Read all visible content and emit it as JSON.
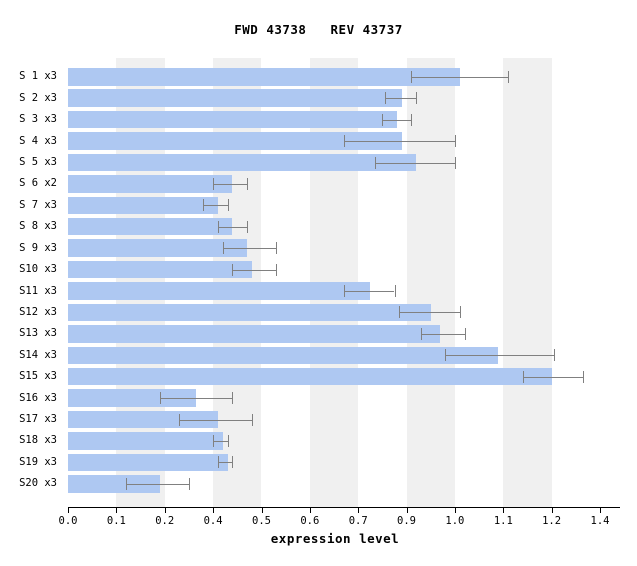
{
  "title": "FWD 43738   REV 43737",
  "chart_data": {
    "type": "bar",
    "orientation": "horizontal",
    "title": "FWD 43738   REV 43737",
    "xlabel": "expression level",
    "ylabel": "",
    "grid": "off",
    "legend": "none",
    "axis_note": "12 evenly spaced ticks; labels as printed on the axis (0.3, 0.8 and 1.3 are skipped)",
    "x_ticks": [
      {
        "value": 0.0,
        "label": "0.0"
      },
      {
        "value": 0.1,
        "label": "0.1"
      },
      {
        "value": 0.2,
        "label": "0.2"
      },
      {
        "value": 0.4,
        "label": "0.4"
      },
      {
        "value": 0.5,
        "label": "0.5"
      },
      {
        "value": 0.6,
        "label": "0.6"
      },
      {
        "value": 0.7,
        "label": "0.7"
      },
      {
        "value": 0.9,
        "label": "0.9"
      },
      {
        "value": 1.0,
        "label": "1.0"
      },
      {
        "value": 1.1,
        "label": "1.1"
      },
      {
        "value": 1.2,
        "label": "1.2"
      },
      {
        "value": 1.4,
        "label": "1.4"
      }
    ],
    "shaded_bands": [
      [
        0.1,
        0.2
      ],
      [
        0.4,
        0.5
      ],
      [
        0.6,
        0.7
      ],
      [
        0.9,
        1.0
      ],
      [
        1.1,
        1.2
      ]
    ],
    "bars": [
      {
        "label": "S 1 x3",
        "value": 1.01,
        "err_low": 0.91,
        "err_high": 1.11
      },
      {
        "label": "S 2 x3",
        "value": 0.88,
        "err_low": 0.81,
        "err_high": 0.92
      },
      {
        "label": "S 3 x3",
        "value": 0.86,
        "err_low": 0.8,
        "err_high": 0.91
      },
      {
        "label": "S 4 x3",
        "value": 0.88,
        "err_low": 0.67,
        "err_high": 1.0
      },
      {
        "label": "S 5 x3",
        "value": 0.92,
        "err_low": 0.77,
        "err_high": 1.0
      },
      {
        "label": "S 6 x2",
        "value": 0.44,
        "err_low": 0.4,
        "err_high": 0.47
      },
      {
        "label": "S 7 x3",
        "value": 0.41,
        "err_low": 0.36,
        "err_high": 0.43
      },
      {
        "label": "S 8 x3",
        "value": 0.44,
        "err_low": 0.41,
        "err_high": 0.47
      },
      {
        "label": "S 9 x3",
        "value": 0.47,
        "err_low": 0.42,
        "err_high": 0.53
      },
      {
        "label": "S10 x3",
        "value": 0.48,
        "err_low": 0.44,
        "err_high": 0.53
      },
      {
        "label": "S11 x3",
        "value": 0.75,
        "err_low": 0.67,
        "err_high": 0.85
      },
      {
        "label": "S12 x3",
        "value": 0.95,
        "err_low": 0.87,
        "err_high": 1.01
      },
      {
        "label": "S13 x3",
        "value": 0.97,
        "err_low": 0.93,
        "err_high": 1.02
      },
      {
        "label": "S14 x3",
        "value": 1.09,
        "err_low": 0.98,
        "err_high": 1.21
      },
      {
        "label": "S15 x3",
        "value": 1.2,
        "err_low": 1.14,
        "err_high": 1.33
      },
      {
        "label": "S16 x3",
        "value": 0.33,
        "err_low": 0.19,
        "err_high": 0.44
      },
      {
        "label": "S17 x3",
        "value": 0.41,
        "err_low": 0.26,
        "err_high": 0.48
      },
      {
        "label": "S18 x3",
        "value": 0.42,
        "err_low": 0.4,
        "err_high": 0.43
      },
      {
        "label": "S19 x3",
        "value": 0.43,
        "err_low": 0.41,
        "err_high": 0.44
      },
      {
        "label": "S20 x3",
        "value": 0.19,
        "err_low": 0.12,
        "err_high": 0.3
      }
    ],
    "colors": {
      "bar": "#aec8f2",
      "error_bar": "#808080",
      "shaded_band": "#f0f0f0",
      "axis": "#000000",
      "background": "#ffffff"
    }
  }
}
